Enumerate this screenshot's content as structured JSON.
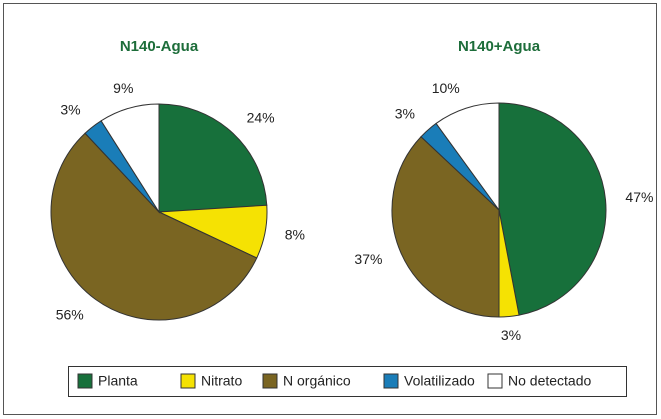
{
  "chart_data": [
    {
      "type": "pie",
      "title": "N140-Agua",
      "categories": [
        "Planta",
        "Nitrato",
        "N orgánico",
        "Volatilizado",
        "No detectado"
      ],
      "values": [
        24,
        8,
        56,
        3,
        9
      ],
      "value_labels": [
        "24%",
        "8%",
        "56%",
        "3%",
        "9%"
      ],
      "colors": [
        "#17703b",
        "#f5e203",
        "#7a6522",
        "#1a7db8",
        "#ffffff"
      ]
    },
    {
      "type": "pie",
      "title": "N140+Agua",
      "categories": [
        "Planta",
        "Nitrato",
        "N orgánico",
        "Volatilizado",
        "No detectado"
      ],
      "values": [
        47,
        3,
        37,
        3,
        10
      ],
      "value_labels": [
        "47%",
        "3%",
        "37%",
        "3%",
        "10%"
      ],
      "colors": [
        "#17703b",
        "#f5e203",
        "#7a6522",
        "#1a7db8",
        "#ffffff"
      ]
    }
  ]
}
